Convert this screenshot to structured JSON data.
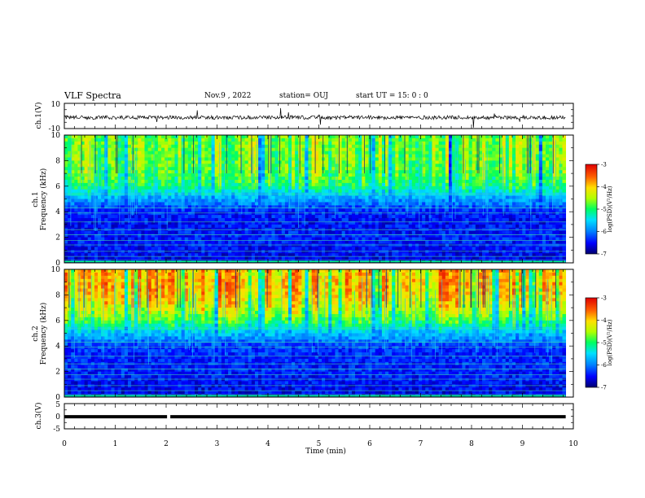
{
  "header": {
    "title": "VLF Spectra",
    "date": "Nov.9  , 2022",
    "station": "station= OUJ",
    "start": "start  UT =   15: 0  : 0"
  },
  "chart_data": [
    {
      "type": "line",
      "panel": "ch1-waveform",
      "ylabel": "ch.1(V)",
      "ylim": [
        -10,
        10
      ],
      "ytick_labels": [
        "10",
        "-10"
      ],
      "xlim": [
        0,
        10
      ],
      "description_values": {
        "baseline_v": -1.2,
        "noise_amplitude_v": 1.5
      },
      "color": "#000000"
    },
    {
      "type": "heatmap",
      "panel": "ch1-spectrogram",
      "ylabel": "Frequency (kHz)",
      "channel_label": "ch.1",
      "ylim": [
        0,
        10
      ],
      "ytick_labels": [
        "0",
        "2",
        "4",
        "6",
        "8",
        "10"
      ],
      "xlim": [
        0,
        10
      ],
      "data_end_min": 9.85,
      "colorbar": {
        "label": "log(PSD)(V²/Hz)",
        "range": [
          -7,
          -3
        ],
        "tick_labels": [
          "-3",
          "-4",
          "-5",
          "-6",
          "-7"
        ]
      },
      "intensity_profile": {
        "freq_khz": [
          0,
          1,
          2,
          3,
          4,
          5,
          6,
          7,
          8,
          9,
          10
        ],
        "log_psd": [
          -6.6,
          -6.5,
          -6.4,
          -6.5,
          -6.4,
          -5.8,
          -5.0,
          -4.7,
          -4.6,
          -4.6,
          -4.6
        ]
      }
    },
    {
      "type": "heatmap",
      "panel": "ch2-spectrogram",
      "ylabel": "Frequency (kHz)",
      "channel_label": "ch.2",
      "ylim": [
        0,
        10
      ],
      "ytick_labels": [
        "0",
        "2",
        "4",
        "6",
        "8",
        "10"
      ],
      "xlim": [
        0,
        10
      ],
      "data_end_min": 9.85,
      "colorbar": {
        "label": "log(PSD)(V²/Hz)",
        "range": [
          -7,
          -3
        ],
        "tick_labels": [
          "-3",
          "-4",
          "-5",
          "-6",
          "-7"
        ]
      },
      "intensity_profile": {
        "freq_khz": [
          0,
          1,
          2,
          3,
          4,
          5,
          6,
          7,
          8,
          9,
          10
        ],
        "log_psd": [
          -6.6,
          -6.5,
          -6.4,
          -6.4,
          -6.3,
          -5.6,
          -4.8,
          -4.2,
          -3.9,
          -3.8,
          -3.9
        ]
      }
    },
    {
      "type": "line",
      "panel": "ch3-waveform",
      "ylabel": "ch.3(V)",
      "ylim": [
        -5,
        5
      ],
      "ytick_labels": [
        "5",
        "0",
        "-5"
      ],
      "xlim": [
        0,
        10
      ],
      "description_values": {
        "baseline_v": -0.2,
        "gap_at_min": 2.05
      },
      "color": "#000000"
    }
  ],
  "xaxis": {
    "label": "Time (min)",
    "tick_labels": [
      "0",
      "1",
      "2",
      "3",
      "4",
      "5",
      "6",
      "7",
      "8",
      "9",
      "10"
    ]
  }
}
